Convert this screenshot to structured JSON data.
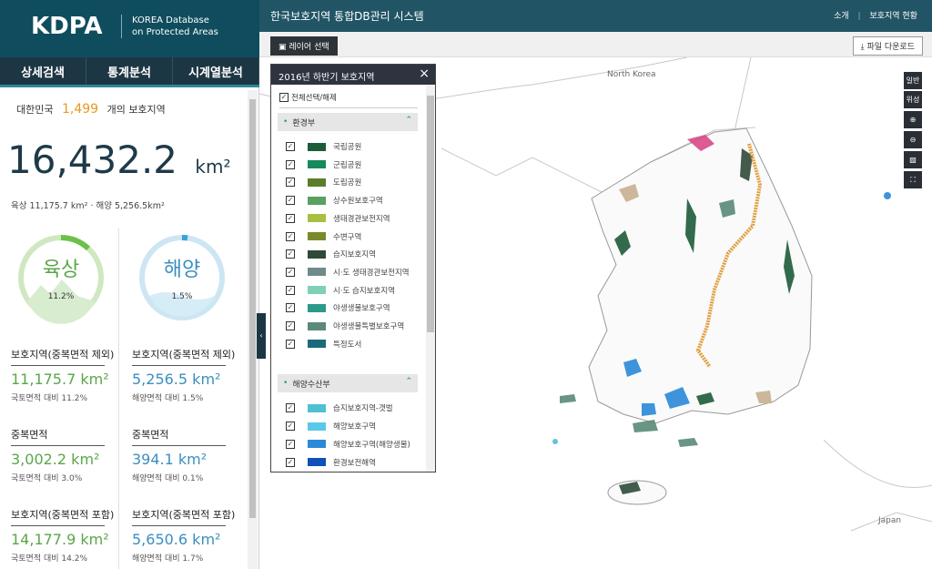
{
  "header": {
    "logo": "KDPA",
    "subtitle_line1": "KOREA Database",
    "subtitle_line2": "on Protected Areas",
    "system_title": "한국보호지역 통합DB관리 시스템",
    "links": [
      "소개",
      "보호지역 현황"
    ]
  },
  "tabs": [
    "상세검색",
    "통계분석",
    "시계열분석"
  ],
  "summary": {
    "country": "대한민국",
    "count": "1,499",
    "count_suffix": "개의 보호지역",
    "total_area": "16,432.2",
    "unit": "km²",
    "breakdown": "육상 11,175.7 km² · 해양 5,256.5km²"
  },
  "gauges": [
    {
      "label": "육상",
      "percent": "11.2%"
    },
    {
      "label": "해양",
      "percent": "1.5%"
    }
  ],
  "stats": [
    {
      "title": "보호지역(중복면적 제외)",
      "value": "11,175.7",
      "unit": "km²",
      "note": "국토면적 대비 11.2%"
    },
    {
      "title": "보호지역(중복면적 제외)",
      "value": "5,256.5",
      "unit": "km²",
      "note": "해양면적 대비 1.5%"
    },
    {
      "title": "중복면적",
      "value": "3,002.2",
      "unit": "km²",
      "note": "국토면적 대비 3.0%"
    },
    {
      "title": "중복면적",
      "value": "394.1",
      "unit": "km²",
      "note": "해양면적 대비 0.1%"
    },
    {
      "title": "보호지역(중복면적 포함)",
      "value": "14,177.9",
      "unit": "km²",
      "note": "국토면적 대비 14.2%"
    },
    {
      "title": "보호지역(중복면적 포함)",
      "value": "5,650.6",
      "unit": "km²",
      "note": "해양면적 대비 1.7%"
    }
  ],
  "toolbar": {
    "layer_button": "레이어 선택",
    "download_button": "파일 다운로드"
  },
  "layer_panel": {
    "title": "2016년 하반기 보호지역",
    "select_all": "전체선택/해제",
    "groups": [
      {
        "name": "환경부",
        "items": [
          {
            "label": "국립공원",
            "color": "#1d5c3a"
          },
          {
            "label": "군립공원",
            "color": "#158a5a"
          },
          {
            "label": "도립공원",
            "color": "#5a7f28"
          },
          {
            "label": "상수원보호구역",
            "color": "#5aa060"
          },
          {
            "label": "생태경관보전지역",
            "color": "#a8c040"
          },
          {
            "label": "수변구역",
            "color": "#7a8a2a"
          },
          {
            "label": "습지보호지역",
            "color": "#2f4a38"
          },
          {
            "label": "시·도 생태경관보전지역",
            "color": "#708a8a"
          },
          {
            "label": "시·도 습지보호지역",
            "color": "#80d0b8"
          },
          {
            "label": "야생생물보호구역",
            "color": "#2a9a8a"
          },
          {
            "label": "야생생물특별보호구역",
            "color": "#5a8a78"
          },
          {
            "label": "특정도서",
            "color": "#1a6a7a"
          }
        ]
      },
      {
        "name": "해양수산부",
        "items": [
          {
            "label": "습지보호지역-갯벌",
            "color": "#4fc0d0"
          },
          {
            "label": "해양보호구역",
            "color": "#5ac8e8"
          },
          {
            "label": "해양보호구역(해양생물)",
            "color": "#2a8ad8"
          },
          {
            "label": "환경보전해역",
            "color": "#1050b8"
          }
        ]
      }
    ]
  },
  "map": {
    "labels": [
      "North Korea",
      "Japan"
    ],
    "controls": [
      "일반",
      "위성"
    ]
  }
}
